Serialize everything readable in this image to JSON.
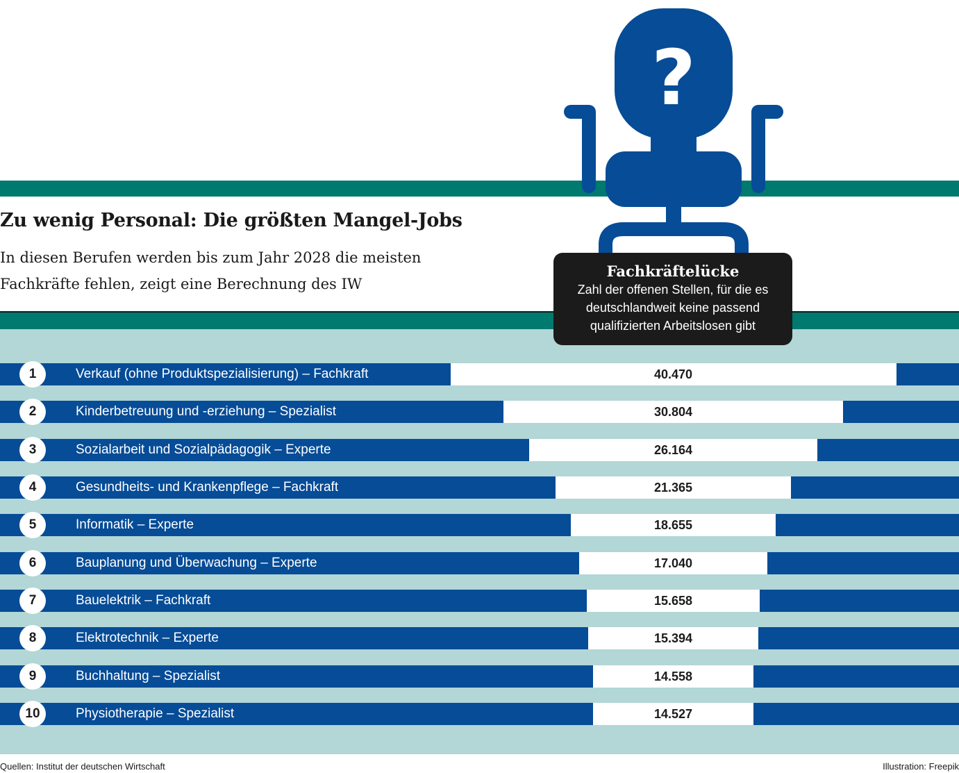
{
  "title": "Zu wenig Personal: Die größten Mangel-Jobs",
  "subtitle": "In diesen Berufen werden bis zum Jahr 2028 die meisten Fachkräfte fehlen, zeigt eine Berechnung des IW",
  "legend": {
    "title": "Fachkräftelücke",
    "description": "Zahl der offenen Stellen, für die es deutschlandweit keine passend qualifizierten Arbeitslosen gibt"
  },
  "illustration_icon": "office-chair-question-icon",
  "chart_data": {
    "type": "bar",
    "title": "Zu wenig Personal: Die größten Mangel-Jobs",
    "ranks": [
      "1",
      "2",
      "3",
      "4",
      "5",
      "6",
      "7",
      "8",
      "9",
      "10"
    ],
    "categories": [
      "Verkauf (ohne Produktspezialisierung) – Fachkraft",
      "Kinderbetreuung und -erziehung – Spezialist",
      "Sozialarbeit und Sozialpädagogik – Experte",
      "Gesundheits- und Krankenpflege – Fachkraft",
      "Informatik – Experte",
      "Bauplanung und Überwachung – Experte",
      "Bauelektrik – Fachkraft",
      "Elektrotechnik – Experte",
      "Buchhaltung – Spezialist",
      "Physiotherapie – Spezialist"
    ],
    "values": [
      40470,
      30804,
      26164,
      21365,
      18655,
      17040,
      15658,
      15394,
      14558,
      14527
    ],
    "labels": [
      "40.470",
      "30.804",
      "26.164",
      "21.365",
      "18.655",
      "17.040",
      "15.658",
      "15.394",
      "14.558",
      "14.527"
    ],
    "series": [
      {
        "name": "Fachkräftelücke",
        "values": [
          40470,
          30804,
          26164,
          21365,
          18655,
          17040,
          15658,
          15394,
          14558,
          14527
        ]
      }
    ],
    "legend_placement": "top-right",
    "grid": false
  },
  "colors": {
    "bar_dark": "#064c97",
    "bar_value": "#ffffff",
    "background_band": "#b3d6d6",
    "accent_teal": "#00796e",
    "legend_bg": "#1b1b1b"
  },
  "footer": {
    "source": "Quellen: Institut der deutschen Wirtschaft",
    "illustration": "Illustration: Freepik"
  }
}
